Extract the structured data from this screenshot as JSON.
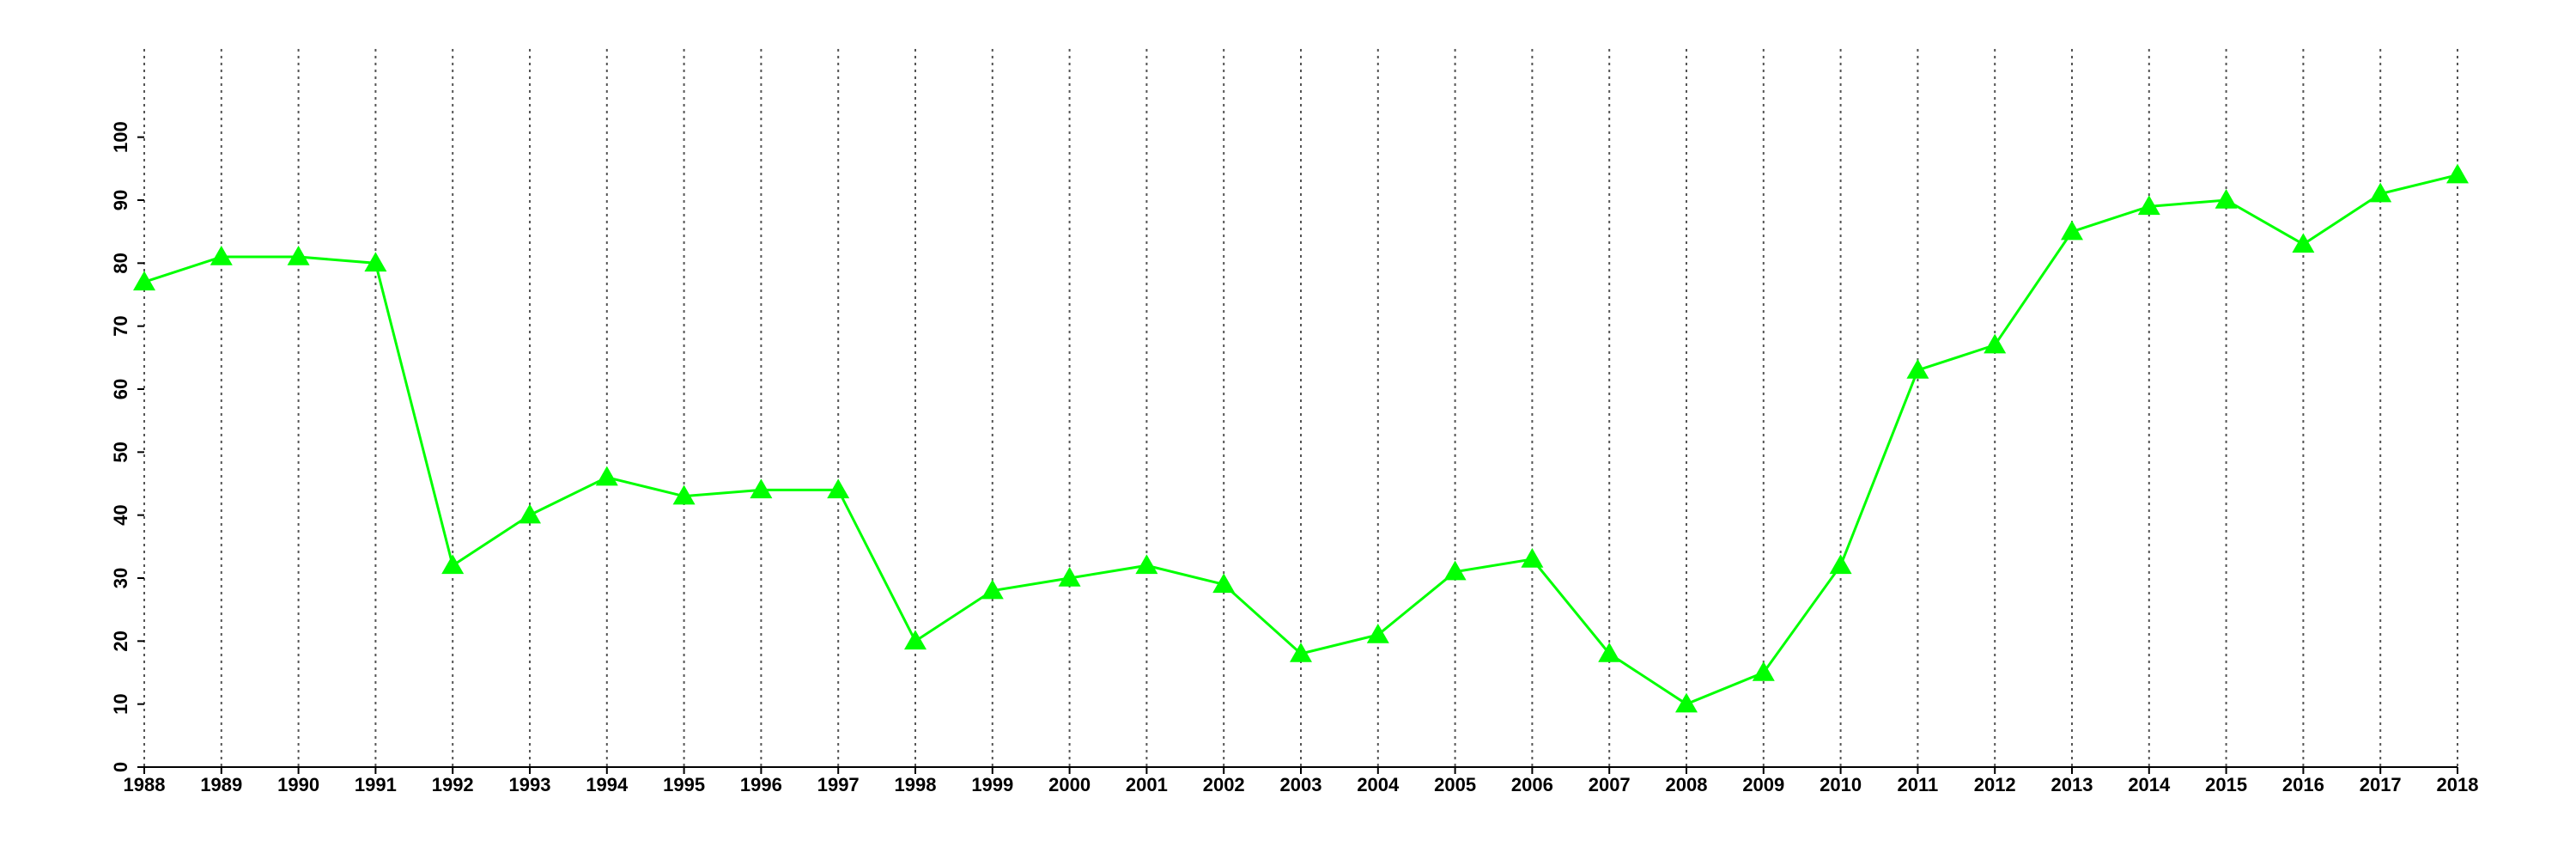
{
  "chart_data": {
    "type": "line",
    "x": [
      1988,
      1989,
      1990,
      1991,
      1992,
      1993,
      1994,
      1995,
      1996,
      1997,
      1998,
      1999,
      2000,
      2001,
      2002,
      2003,
      2004,
      2005,
      2006,
      2007,
      2008,
      2009,
      2010,
      2011,
      2012,
      2013,
      2014,
      2015,
      2016,
      2017,
      2018
    ],
    "series": [
      {
        "color": "#00ff00",
        "values": [
          77,
          81,
          81,
          80,
          32,
          40,
          46,
          43,
          44,
          44,
          20,
          28,
          30,
          32,
          29,
          18,
          21,
          31,
          33,
          18,
          10,
          15,
          32,
          63,
          67,
          85,
          89,
          90,
          83,
          91,
          94
        ]
      }
    ],
    "xlim": [
      1988,
      2018
    ],
    "xticks": [
      1988,
      1989,
      1990,
      1991,
      1992,
      1993,
      1994,
      1995,
      1996,
      1997,
      1998,
      1999,
      2000,
      2001,
      2002,
      2003,
      2004,
      2005,
      2006,
      2007,
      2008,
      2009,
      2010,
      2011,
      2012,
      2013,
      2014,
      2015,
      2016,
      2017,
      2018
    ],
    "ylim": [
      0,
      114
    ],
    "yticks": [
      0,
      10,
      20,
      30,
      40,
      50,
      60,
      70,
      80,
      90,
      100
    ],
    "grid": "x"
  }
}
